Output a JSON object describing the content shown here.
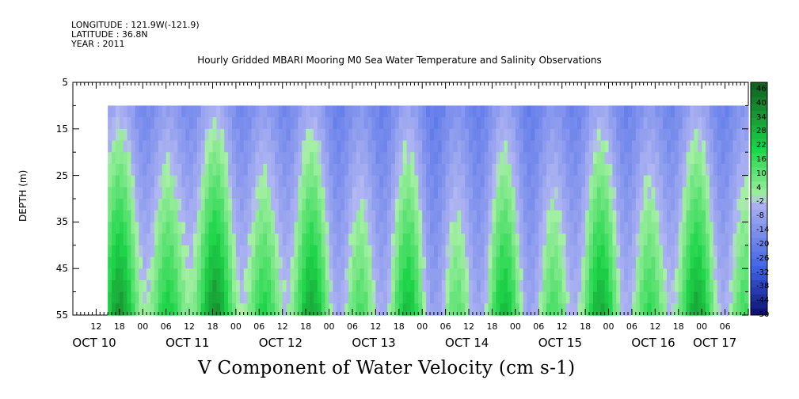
{
  "header": {
    "longitude": "LONGITUDE : 121.9W(-121.9)",
    "latitude": "LATITUDE : 36.8N",
    "year": "YEAR : 2011",
    "dataset_title": "Hourly Gridded MBARI Mooring M0 Sea Water Temperature and Salinity Observations"
  },
  "variable_title": "V Component of Water Velocity (cm s-1)",
  "colors": {
    "negative_dark": "#0a0f6e",
    "negative_mid": "#3f62e6",
    "negative_light": "#b2b7f2",
    "positive_light": "#a8f0a6",
    "positive_mid": "#1fd64a",
    "positive_dark": "#0f5e1e"
  },
  "chart_data": {
    "type": "heatmap",
    "title": "Hourly Gridded MBARI Mooring M0 Sea Water Temperature and Salinity Observations",
    "xlabel": "",
    "ylabel": "DEPTH (m)",
    "variable": "V Component of Water Velocity (cm s-1)",
    "y_ticks": [
      5,
      15,
      25,
      35,
      45,
      55
    ],
    "ylim": [
      55,
      5
    ],
    "data_depth_range": [
      10,
      55
    ],
    "time_start": "2011-10-10 06:00",
    "time_end": "2011-10-17 12:00",
    "data_time_start": "2011-10-10 15:00",
    "data_time_end": "2011-10-17 12:00",
    "x_hour_labels": [
      "12",
      "18",
      "00",
      "06",
      "12",
      "18",
      "00",
      "06",
      "12",
      "18",
      "00",
      "06",
      "12",
      "18",
      "00",
      "06",
      "12",
      "18",
      "00",
      "06",
      "12",
      "18",
      "00",
      "06",
      "12",
      "18",
      "00",
      "06"
    ],
    "x_day_labels": [
      "OCT 10",
      "OCT 11",
      "OCT 12",
      "OCT 13",
      "OCT 14",
      "OCT 15",
      "OCT 16",
      "OCT 17"
    ],
    "colorbar_labels": [
      "46",
      "40",
      "34",
      "28",
      "22",
      "16",
      "10",
      "4",
      "-2",
      "-8",
      "-14",
      "-20",
      "-26",
      "-32",
      "-38",
      "-44",
      "-50"
    ],
    "colorbar_range": [
      -50,
      49
    ]
  }
}
